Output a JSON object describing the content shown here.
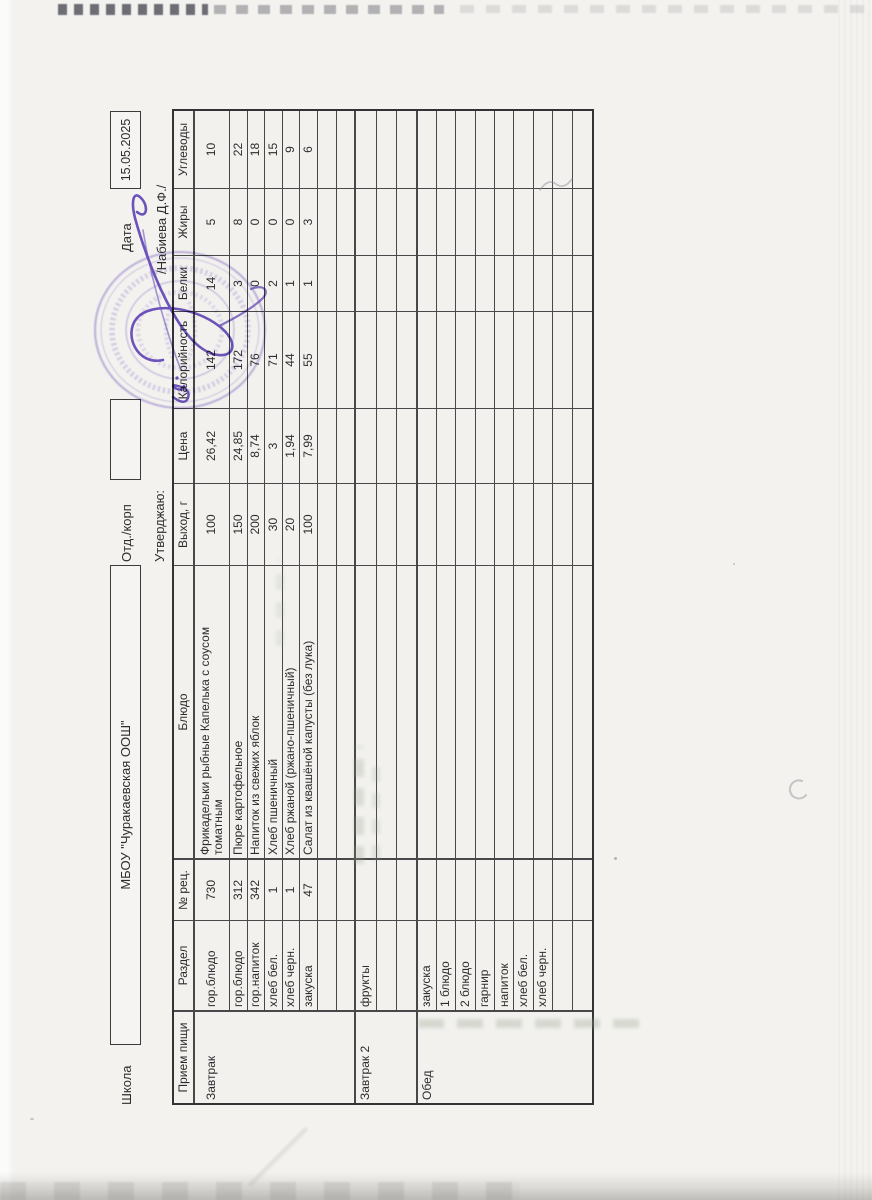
{
  "document": {
    "school_label": "Школа",
    "school_name": "МБОУ \"Чуракаевская ООШ\"",
    "dept_label": "Отд./корп",
    "date_label": "Дата",
    "date_value": "15.05.2025",
    "approve_label": "Утверджаю:",
    "approver_name": "/Набиева Д.Ф./"
  },
  "stamp": {
    "ink_color": "#7b61b8"
  },
  "table": {
    "columns": [
      "Прием пищи",
      "Раздел",
      "№ рец.",
      "Блюдо",
      "Выход, г",
      "Цена",
      "Калорийность",
      "Белки",
      "Жиры",
      "Углеводы"
    ],
    "sections": [
      {
        "meal": "Завтрак",
        "rows": [
          [
            "гор.блюдо",
            "730",
            "Фрикадельки рыбные Капелька с соусом томатным",
            "100",
            "26,42",
            "142",
            "14",
            "5",
            "10"
          ],
          [
            "гор.блюдо",
            "312",
            "Пюре картофельное",
            "150",
            "24,85",
            "172",
            "3",
            "8",
            "22"
          ],
          [
            "гор.напиток",
            "342",
            "Напиток из свежих яблок",
            "200",
            "8,74",
            "76",
            "0",
            "0",
            "18"
          ],
          [
            "хлеб бел.",
            "1",
            "Хлеб пшеничный",
            "30",
            "3",
            "71",
            "2",
            "0",
            "15"
          ],
          [
            "хлеб черн.",
            "1",
            "Хлеб ржаной (ржано-пшеничный)",
            "20",
            "1,94",
            "44",
            "1",
            "0",
            "9"
          ],
          [
            "закуска",
            "47",
            "Салат из квашёной капусты (без лука)",
            "100",
            "7,99",
            "55",
            "1",
            "3",
            "6"
          ],
          [
            "",
            "",
            "",
            "",
            "",
            "",
            "",
            "",
            ""
          ],
          [
            "",
            "",
            "",
            "",
            "",
            "",
            "",
            "",
            ""
          ]
        ]
      },
      {
        "meal": "Завтрак 2",
        "rows": [
          [
            "фрукты",
            "",
            "",
            "",
            "",
            "",
            "",
            "",
            ""
          ],
          [
            "",
            "",
            "",
            "",
            "",
            "",
            "",
            "",
            ""
          ],
          [
            "",
            "",
            "",
            "",
            "",
            "",
            "",
            "",
            ""
          ]
        ]
      },
      {
        "meal": "Обед",
        "rows": [
          [
            "закуска",
            "",
            "",
            "",
            "",
            "",
            "",
            "",
            ""
          ],
          [
            "1 блюдо",
            "",
            "",
            "",
            "",
            "",
            "",
            "",
            ""
          ],
          [
            "2 блюдо",
            "",
            "",
            "",
            "",
            "",
            "",
            "",
            ""
          ],
          [
            "гарнир",
            "",
            "",
            "",
            "",
            "",
            "",
            "",
            ""
          ],
          [
            "напиток",
            "",
            "",
            "",
            "",
            "",
            "",
            "",
            ""
          ],
          [
            "хлеб бел.",
            "",
            "",
            "",
            "",
            "",
            "",
            "",
            ""
          ],
          [
            "хлеб черн.",
            "",
            "",
            "",
            "",
            "",
            "",
            "",
            ""
          ],
          [
            "",
            "",
            "",
            "",
            "",
            "",
            "",
            "",
            ""
          ],
          [
            "",
            "",
            "",
            "",
            "",
            "",
            "",
            "",
            ""
          ]
        ]
      }
    ]
  }
}
